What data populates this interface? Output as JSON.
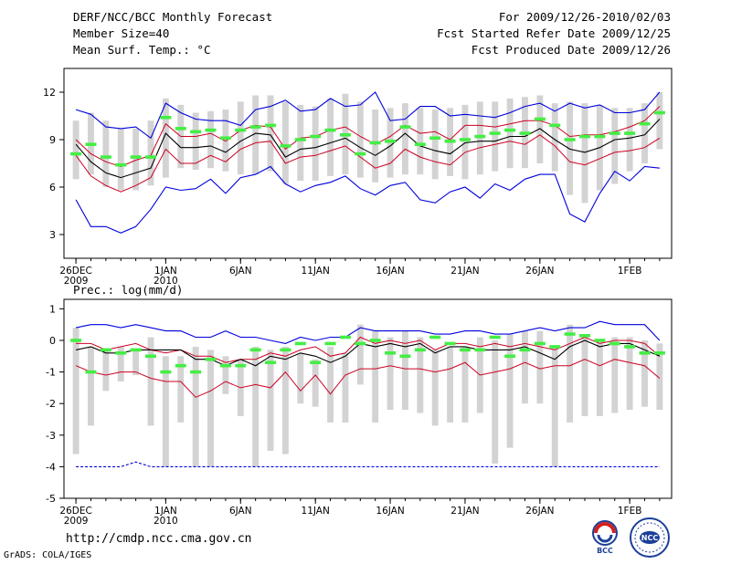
{
  "header": {
    "title": "DERF/NCC/BCC Monthly Forecast",
    "member_size": "Member Size=40",
    "variable": "Mean Surf. Temp.: °C",
    "for_range": "For 2009/12/26-2010/02/03",
    "refer_date": "Fcst Started Refer Date 2009/12/25",
    "produced_date": "Fcst Produced Date 2009/12/26"
  },
  "footer": {
    "url": "http://cmdp.ncc.cma.gov.cn",
    "credit": "GrADS: COLA/IGES",
    "logo_left": "BCC",
    "logo_right": "NCC"
  },
  "colors": {
    "box": "#d3d3d3",
    "envelope": "#0000dd",
    "spread": "#cc0022",
    "mean": "#000000",
    "observed": "#44ee44"
  },
  "chart_data": [
    {
      "type": "line",
      "title": "Mean Surf. Temp.: °C",
      "x_ticks": [
        {
          "day": 0,
          "label": "26DEC",
          "sub": "2009"
        },
        {
          "day": 6,
          "label": "1JAN",
          "sub": "2010"
        },
        {
          "day": 11,
          "label": "6JAN",
          "sub": ""
        },
        {
          "day": 16,
          "label": "11JAN",
          "sub": ""
        },
        {
          "day": 21,
          "label": "16JAN",
          "sub": ""
        },
        {
          "day": 26,
          "label": "21JAN",
          "sub": ""
        },
        {
          "day": 31,
          "label": "26JAN",
          "sub": ""
        },
        {
          "day": 37,
          "label": "1FEB",
          "sub": ""
        }
      ],
      "y_ticks": [
        3,
        6,
        9,
        12
      ],
      "ylim": [
        1.5,
        13.5
      ],
      "xlim": [
        -0.8,
        39.8
      ],
      "days": 40,
      "box_low": [
        6.5,
        6.8,
        6.0,
        5.8,
        5.8,
        6.1,
        6.6,
        7.2,
        7.1,
        7.2,
        7.0,
        6.8,
        6.8,
        7.0,
        6.2,
        6.4,
        6.4,
        6.7,
        6.8,
        6.6,
        6.3,
        6.6,
        6.8,
        6.8,
        6.5,
        6.7,
        6.5,
        6.8,
        7.0,
        7.2,
        7.2,
        7.5,
        7.0,
        5.5,
        5.0,
        5.8,
        6.2,
        7.0,
        7.5,
        8.4
      ],
      "box_high": [
        10.2,
        10.7,
        10.2,
        9.7,
        9.7,
        10.2,
        11.6,
        11.2,
        10.7,
        10.8,
        10.9,
        11.4,
        11.8,
        11.8,
        11.4,
        11.2,
        11.1,
        11.6,
        11.9,
        11.4,
        10.9,
        11.0,
        11.3,
        11.0,
        10.9,
        11.0,
        11.2,
        11.4,
        11.4,
        11.6,
        11.7,
        11.8,
        11.3,
        11.4,
        11.3,
        11.2,
        11.0,
        11.0,
        11.3,
        12.0
      ],
      "series": [
        {
          "name": "max",
          "role": "envelope",
          "values": [
            10.9,
            10.6,
            9.8,
            9.7,
            9.8,
            9.1,
            11.3,
            10.7,
            10.3,
            10.2,
            10.2,
            9.9,
            10.9,
            11.1,
            11.5,
            10.8,
            10.9,
            11.6,
            11.1,
            11.2,
            12.0,
            10.2,
            10.3,
            11.1,
            11.1,
            10.5,
            10.6,
            10.5,
            10.4,
            10.7,
            11.1,
            11.3,
            10.8,
            11.3,
            11.0,
            11.2,
            10.7,
            10.7,
            10.9,
            12.0
          ]
        },
        {
          "name": "upper",
          "role": "spread",
          "values": [
            9.0,
            8.1,
            7.6,
            7.3,
            7.7,
            8.0,
            10.0,
            9.2,
            9.2,
            9.4,
            8.9,
            9.6,
            9.9,
            9.8,
            8.4,
            9.1,
            9.2,
            9.6,
            9.8,
            9.2,
            8.7,
            9.2,
            9.9,
            9.4,
            9.5,
            9.0,
            9.9,
            9.9,
            9.8,
            10.0,
            10.2,
            10.2,
            9.9,
            9.2,
            9.3,
            9.3,
            9.5,
            9.8,
            10.2,
            11.1
          ]
        },
        {
          "name": "mean",
          "role": "mean",
          "values": [
            8.7,
            7.6,
            6.9,
            6.6,
            6.9,
            7.2,
            9.4,
            8.5,
            8.5,
            8.6,
            8.2,
            8.9,
            9.4,
            9.3,
            7.9,
            8.4,
            8.5,
            8.8,
            9.1,
            8.5,
            8.0,
            8.6,
            9.4,
            8.6,
            8.3,
            8.1,
            8.8,
            8.9,
            8.9,
            9.2,
            9.2,
            9.7,
            9.0,
            8.4,
            8.2,
            8.5,
            9.0,
            9.1,
            9.3,
            10.3
          ]
        },
        {
          "name": "lower",
          "role": "spread",
          "values": [
            8.0,
            6.7,
            6.1,
            5.7,
            6.1,
            6.6,
            8.4,
            7.5,
            7.5,
            8.0,
            7.6,
            8.4,
            8.8,
            8.9,
            7.5,
            7.9,
            8.0,
            8.3,
            8.6,
            7.9,
            7.2,
            7.5,
            8.4,
            7.9,
            7.6,
            7.4,
            8.2,
            8.5,
            8.7,
            8.9,
            8.7,
            9.3,
            8.6,
            7.6,
            7.4,
            7.8,
            8.2,
            8.3,
            8.5,
            9.1
          ]
        },
        {
          "name": "min",
          "role": "envelope",
          "values": [
            5.2,
            3.5,
            3.5,
            3.1,
            3.5,
            4.6,
            6.0,
            5.8,
            5.9,
            6.5,
            5.6,
            6.6,
            6.8,
            7.3,
            6.2,
            5.7,
            6.1,
            6.3,
            6.7,
            5.9,
            5.5,
            6.1,
            6.3,
            5.2,
            5.0,
            5.7,
            6.0,
            5.3,
            6.2,
            5.8,
            6.5,
            6.8,
            6.8,
            4.3,
            3.8,
            5.6,
            7.0,
            6.4,
            7.3,
            7.2
          ]
        },
        {
          "name": "observed",
          "role": "obs",
          "values": [
            8.1,
            8.7,
            7.9,
            7.4,
            7.9,
            7.9,
            10.4,
            9.7,
            9.5,
            9.6,
            9.1,
            9.6,
            9.8,
            9.9,
            8.6,
            9.0,
            9.2,
            9.6,
            9.3,
            8.1,
            8.8,
            8.9,
            9.8,
            8.7,
            9.1,
            8.9,
            9.0,
            9.2,
            9.4,
            9.6,
            9.4,
            10.3,
            9.9,
            9.0,
            9.2,
            9.2,
            9.4,
            9.4,
            10.0,
            10.7
          ]
        }
      ]
    },
    {
      "type": "line",
      "title": "Prec.: log(mm/d)",
      "x_ticks": [
        {
          "day": 0,
          "label": "26DEC",
          "sub": "2009"
        },
        {
          "day": 6,
          "label": "1JAN",
          "sub": "2010"
        },
        {
          "day": 11,
          "label": "6JAN",
          "sub": ""
        },
        {
          "day": 16,
          "label": "11JAN",
          "sub": ""
        },
        {
          "day": 21,
          "label": "16JAN",
          "sub": ""
        },
        {
          "day": 26,
          "label": "21JAN",
          "sub": ""
        },
        {
          "day": 31,
          "label": "26JAN",
          "sub": ""
        },
        {
          "day": 37,
          "label": "1FEB",
          "sub": ""
        }
      ],
      "y_ticks": [
        -5,
        -4,
        -3,
        -2,
        -1,
        0,
        1
      ],
      "ylim": [
        -5,
        1.3
      ],
      "xlim": [
        -0.8,
        39.8
      ],
      "days": 40,
      "box_low": [
        -3.6,
        -2.7,
        -1.6,
        -1.3,
        -1.1,
        -2.7,
        -4.0,
        -2.6,
        -4.0,
        -4.0,
        -1.7,
        -2.4,
        -4.0,
        -3.5,
        -3.6,
        -2.0,
        -2.1,
        -2.6,
        -2.6,
        -1.4,
        -2.6,
        -2.2,
        -2.2,
        -2.3,
        -2.7,
        -2.6,
        -2.6,
        -2.3,
        -3.9,
        -3.4,
        -2.0,
        -2.0,
        -4.0,
        -2.6,
        -2.4,
        -2.4,
        -2.3,
        -2.2,
        -2.1,
        -2.2
      ],
      "box_high": [
        0.4,
        -0.2,
        -0.3,
        -0.2,
        -0.3,
        0.1,
        -0.5,
        -0.5,
        -0.2,
        -0.3,
        -0.5,
        -0.6,
        -0.2,
        -0.3,
        -0.2,
        -0.4,
        -0.6,
        -0.2,
        -0.4,
        0.5,
        0.3,
        0.1,
        0.3,
        0.1,
        -0.3,
        -0.2,
        -0.2,
        0.1,
        0.0,
        0.2,
        0.3,
        0.3,
        -0.2,
        0.5,
        0.1,
        0.0,
        0.1,
        0.1,
        0.0,
        -0.1
      ],
      "series": [
        {
          "name": "max",
          "role": "envelope",
          "values": [
            0.4,
            0.5,
            0.5,
            0.4,
            0.5,
            0.4,
            0.3,
            0.3,
            0.1,
            0.1,
            0.3,
            0.1,
            0.1,
            0.0,
            -0.1,
            0.1,
            0.0,
            0.1,
            0.1,
            0.4,
            0.3,
            0.3,
            0.3,
            0.3,
            0.2,
            0.2,
            0.3,
            0.3,
            0.2,
            0.2,
            0.3,
            0.4,
            0.3,
            0.4,
            0.4,
            0.6,
            0.5,
            0.5,
            0.5,
            0.0
          ]
        },
        {
          "name": "upper",
          "role": "spread",
          "values": [
            -0.1,
            -0.1,
            -0.3,
            -0.2,
            -0.1,
            -0.3,
            -0.4,
            -0.3,
            -0.5,
            -0.5,
            -0.7,
            -0.6,
            -0.6,
            -0.4,
            -0.5,
            -0.3,
            -0.2,
            -0.5,
            -0.4,
            0.1,
            -0.1,
            0.0,
            -0.1,
            0.0,
            -0.3,
            -0.1,
            -0.1,
            -0.2,
            -0.1,
            -0.2,
            -0.1,
            -0.2,
            -0.3,
            -0.1,
            0.1,
            -0.1,
            0.0,
            0.0,
            -0.1,
            -0.5
          ]
        },
        {
          "name": "mean",
          "role": "mean",
          "values": [
            -0.3,
            -0.2,
            -0.4,
            -0.4,
            -0.3,
            -0.3,
            -0.3,
            -0.3,
            -0.6,
            -0.6,
            -0.8,
            -0.6,
            -0.8,
            -0.5,
            -0.6,
            -0.4,
            -0.5,
            -0.7,
            -0.5,
            -0.1,
            -0.2,
            -0.1,
            -0.2,
            -0.1,
            -0.4,
            -0.2,
            -0.2,
            -0.3,
            -0.3,
            -0.3,
            -0.2,
            -0.4,
            -0.6,
            -0.2,
            0.0,
            -0.2,
            -0.1,
            -0.1,
            -0.3,
            -0.5
          ]
        },
        {
          "name": "lower",
          "role": "spread",
          "values": [
            -0.8,
            -1.0,
            -1.1,
            -1.0,
            -1.0,
            -1.2,
            -1.3,
            -1.3,
            -1.8,
            -1.6,
            -1.3,
            -1.5,
            -1.4,
            -1.5,
            -1.0,
            -1.6,
            -1.1,
            -1.7,
            -1.1,
            -0.9,
            -0.9,
            -0.8,
            -0.9,
            -0.9,
            -1.0,
            -0.9,
            -0.7,
            -1.1,
            -1.0,
            -0.9,
            -0.7,
            -0.9,
            -0.8,
            -0.8,
            -0.6,
            -0.8,
            -0.6,
            -0.7,
            -0.8,
            -1.2
          ]
        },
        {
          "name": "min",
          "role": "envelope",
          "values": [
            -4.0,
            -4.0,
            -4.0,
            -4.0,
            -3.85,
            -4.0,
            -4.0,
            -4.0,
            -4.0,
            -4.0,
            -4.0,
            -4.0,
            -4.0,
            -4.0,
            -4.0,
            -4.0,
            -4.0,
            -4.0,
            -4.0,
            -4.0,
            -4.0,
            -4.0,
            -4.0,
            -4.0,
            -4.0,
            -4.0,
            -4.0,
            -4.0,
            -4.0,
            -4.0,
            -4.0,
            -4.0,
            -4.0,
            -4.0,
            -4.0,
            -4.0,
            -4.0,
            -4.0,
            -4.0,
            -4.0
          ]
        },
        {
          "name": "observed",
          "role": "obs",
          "values": [
            0.0,
            -1.0,
            -0.3,
            -0.4,
            -0.3,
            -0.5,
            -1.0,
            -0.8,
            -1.0,
            -0.6,
            -0.8,
            -0.8,
            -0.3,
            -0.7,
            -0.3,
            -0.1,
            -0.7,
            -0.1,
            0.1,
            -0.1,
            0.0,
            -0.4,
            -0.5,
            -0.3,
            0.1,
            -0.1,
            -0.3,
            -0.3,
            0.1,
            -0.5,
            -0.3,
            -0.1,
            -0.2,
            0.2,
            0.15,
            0.0,
            -0.1,
            -0.2,
            -0.4,
            -0.4
          ]
        }
      ]
    }
  ]
}
